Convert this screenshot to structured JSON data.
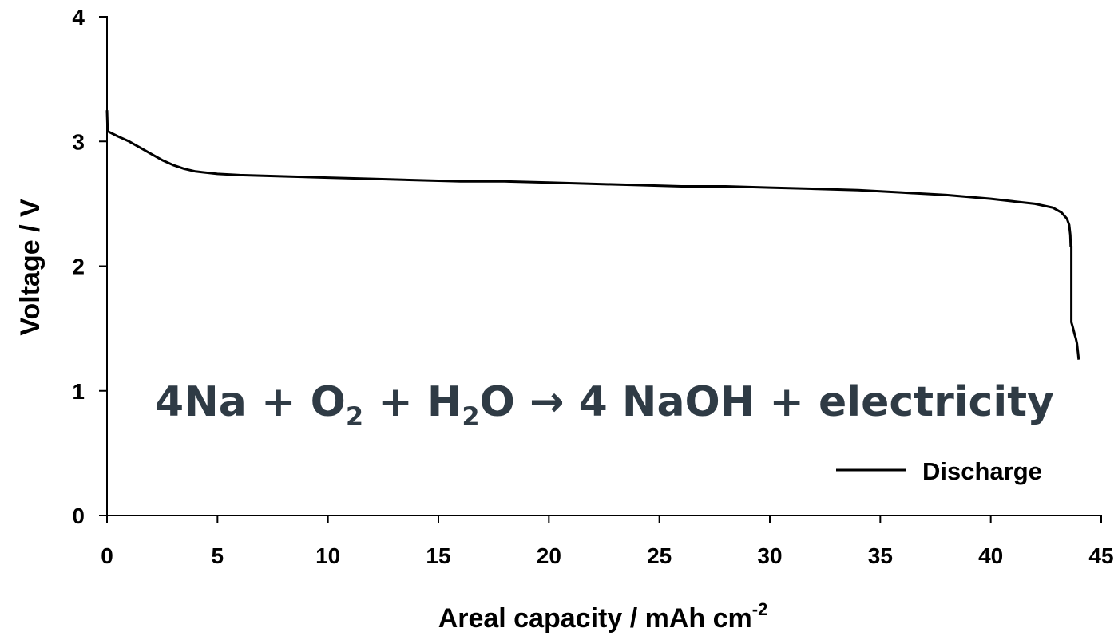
{
  "chart_data": {
    "type": "line",
    "title": "",
    "xlabel": "Areal capacity / mAh cm",
    "xlabel_superscript": "-2",
    "ylabel": "Voltage / V",
    "xlim": [
      0,
      45
    ],
    "ylim": [
      0,
      4
    ],
    "xticks": [
      "0",
      "5",
      "10",
      "15",
      "20",
      "25",
      "30",
      "35",
      "40",
      "45"
    ],
    "yticks": [
      "0",
      "1",
      "2",
      "3",
      "4"
    ],
    "grid": false,
    "legend_placement": "bottom-right",
    "series": [
      {
        "name": "Discharge",
        "color": "#000000",
        "x": [
          0,
          0.02,
          0.05,
          0.5,
          1,
          1.5,
          2,
          2.5,
          3,
          3.5,
          4,
          5,
          6,
          8,
          10,
          12,
          14,
          16,
          18,
          20,
          22,
          24,
          26,
          28,
          30,
          32,
          34,
          36,
          38,
          40,
          41,
          42,
          42.8,
          43.2,
          43.45,
          43.55,
          43.6,
          43.62,
          43.65,
          43.65,
          43.7,
          43.8,
          43.85,
          43.9,
          43.95,
          43.98
        ],
        "y": [
          3.25,
          3.12,
          3.08,
          3.04,
          3.0,
          2.95,
          2.9,
          2.85,
          2.81,
          2.78,
          2.76,
          2.74,
          2.73,
          2.72,
          2.71,
          2.7,
          2.69,
          2.68,
          2.68,
          2.67,
          2.66,
          2.65,
          2.64,
          2.64,
          2.63,
          2.62,
          2.61,
          2.59,
          2.57,
          2.54,
          2.52,
          2.5,
          2.47,
          2.43,
          2.38,
          2.33,
          2.25,
          2.16,
          2.16,
          1.55,
          1.52,
          1.45,
          1.42,
          1.38,
          1.3,
          1.25
        ]
      }
    ],
    "annotation": {
      "part1": "4Na + O",
      "sub1": "2",
      "part2": " + H",
      "sub2": "2",
      "part3": "O → 4 NaOH + electricity"
    }
  }
}
